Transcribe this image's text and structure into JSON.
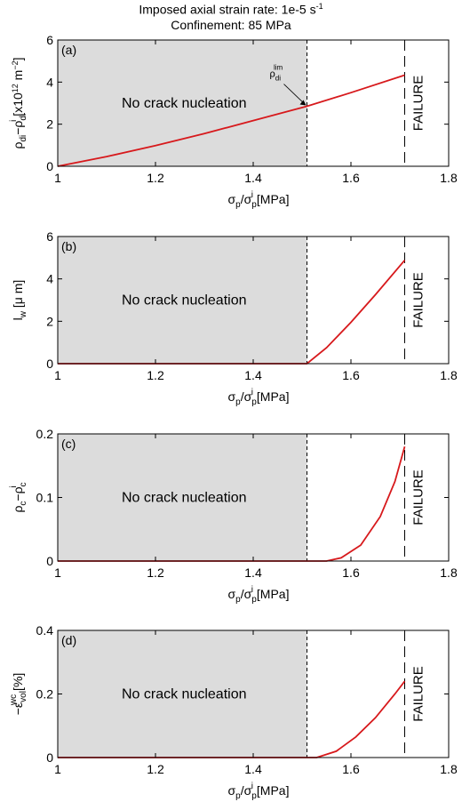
{
  "figure": {
    "title_line1": "Imposed axial strain rate: 1e-5 s",
    "title_line1_sup": "-1",
    "title_line2": "Confinement: 85 MPa"
  },
  "colors": {
    "series": "#d7191c",
    "shade": "#dcdcdc",
    "axis": "#000000"
  },
  "chart_data": [
    {
      "type": "line",
      "panel_label": "(a)",
      "ylabel": "ρ_di − ρ_di^i [x10^12 m^-2]",
      "xlabel": "σ_p/σ_p^i [MPa]",
      "xlim": [
        1,
        1.8
      ],
      "ylim": [
        0,
        6
      ],
      "xticks": [
        "1",
        "1.2",
        "1.4",
        "1.6",
        "1.8"
      ],
      "yticks": [
        "0",
        "2",
        "4",
        "6"
      ],
      "shaded_region": {
        "x": [
          1,
          1.51
        ],
        "label": "No crack nucleation"
      },
      "vlines": [
        {
          "x": 1.51,
          "style": "dotted"
        },
        {
          "x": 1.71,
          "style": "dashed",
          "label": "FAILURE"
        }
      ],
      "annotation": {
        "text": "ρ_di^lim",
        "x": 1.51,
        "y": 2.85
      },
      "series": [
        {
          "x": [
            1.0,
            1.1,
            1.2,
            1.3,
            1.4,
            1.51,
            1.6,
            1.71
          ],
          "y": [
            0.0,
            0.46,
            0.98,
            1.55,
            2.17,
            2.85,
            3.5,
            4.33
          ]
        }
      ]
    },
    {
      "type": "line",
      "panel_label": "(b)",
      "ylabel": "l_w [μ m]",
      "xlabel": "σ_p/σ_p^i [MPa]",
      "xlim": [
        1,
        1.8
      ],
      "ylim": [
        0,
        6
      ],
      "xticks": [
        "1",
        "1.2",
        "1.4",
        "1.6",
        "1.8"
      ],
      "yticks": [
        "0",
        "2",
        "4",
        "6"
      ],
      "shaded_region": {
        "x": [
          1,
          1.51
        ],
        "label": "No crack nucleation"
      },
      "vlines": [
        {
          "x": 1.51,
          "style": "dotted"
        },
        {
          "x": 1.71,
          "style": "dashed",
          "label": "FAILURE"
        }
      ],
      "series": [
        {
          "x": [
            1.0,
            1.51,
            1.55,
            1.6,
            1.65,
            1.71
          ],
          "y": [
            0.0,
            0.0,
            0.75,
            1.95,
            3.25,
            4.88
          ]
        }
      ]
    },
    {
      "type": "line",
      "panel_label": "(c)",
      "ylabel": "ρ_c − ρ_c^i",
      "xlabel": "σ_p/σ_p^i [MPa]",
      "xlim": [
        1,
        1.8
      ],
      "ylim": [
        0,
        0.2
      ],
      "xticks": [
        "1",
        "1.2",
        "1.4",
        "1.6",
        "1.8"
      ],
      "yticks": [
        "0",
        "0.1",
        "0.2"
      ],
      "shaded_region": {
        "x": [
          1,
          1.51
        ],
        "label": "No crack nucleation"
      },
      "vlines": [
        {
          "x": 1.51,
          "style": "dotted"
        },
        {
          "x": 1.71,
          "style": "dashed",
          "label": "FAILURE"
        }
      ],
      "series": [
        {
          "x": [
            1.0,
            1.55,
            1.58,
            1.62,
            1.66,
            1.69,
            1.71
          ],
          "y": [
            0.0,
            0.0,
            0.005,
            0.025,
            0.07,
            0.125,
            0.18
          ]
        }
      ]
    },
    {
      "type": "line",
      "panel_label": "(d)",
      "ylabel": "−ε_vol^wc [%]",
      "xlabel": "σ_p/σ_p^i [MPa]",
      "xlim": [
        1,
        1.8
      ],
      "ylim": [
        0,
        0.4
      ],
      "xticks": [
        "1",
        "1.2",
        "1.4",
        "1.6",
        "1.8"
      ],
      "yticks": [
        "0",
        "0.2",
        "0.4"
      ],
      "shaded_region": {
        "x": [
          1,
          1.51
        ],
        "label": "No crack nucleation"
      },
      "vlines": [
        {
          "x": 1.51,
          "style": "dotted"
        },
        {
          "x": 1.71,
          "style": "dashed",
          "label": "FAILURE"
        }
      ],
      "series": [
        {
          "x": [
            1.0,
            1.53,
            1.57,
            1.61,
            1.65,
            1.69,
            1.71
          ],
          "y": [
            0.0,
            0.0,
            0.02,
            0.065,
            0.125,
            0.2,
            0.24
          ]
        }
      ]
    }
  ]
}
